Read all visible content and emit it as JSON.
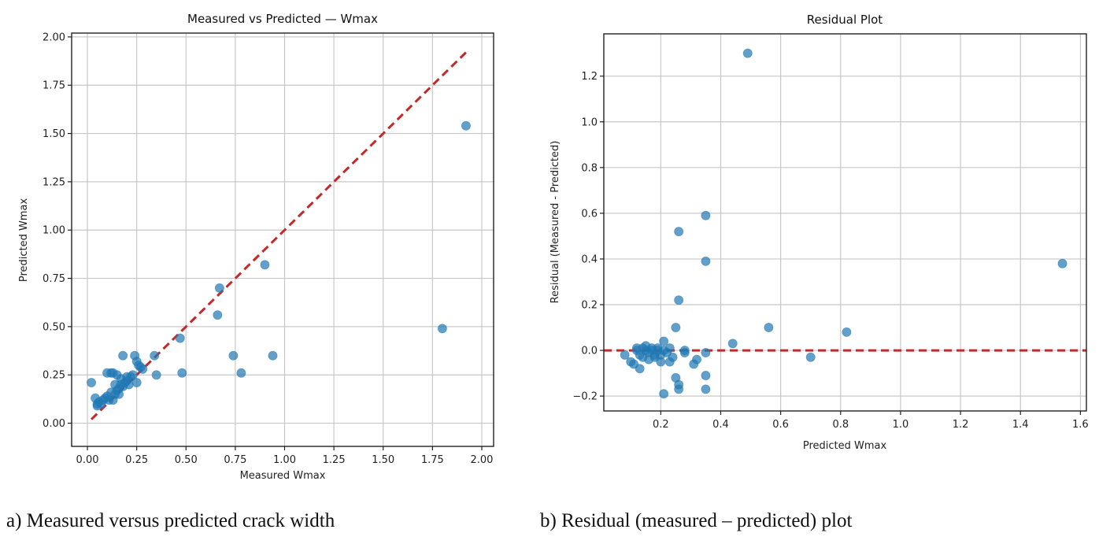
{
  "chart_data": [
    {
      "type": "scatter",
      "title": "Measured vs Predicted — Wmax",
      "xlabel": "Measured Wmax",
      "ylabel": "Predicted Wmax",
      "xlim": [
        -0.08,
        2.06
      ],
      "ylim": [
        -0.12,
        2.02
      ],
      "xticks": [
        0.0,
        0.25,
        0.5,
        0.75,
        1.0,
        1.25,
        1.5,
        1.75,
        2.0
      ],
      "xtick_labels": [
        "0.00",
        "0.25",
        "0.50",
        "0.75",
        "1.00",
        "1.25",
        "1.50",
        "1.75",
        "2.00"
      ],
      "yticks": [
        0.0,
        0.25,
        0.5,
        0.75,
        1.0,
        1.25,
        1.5,
        1.75,
        2.0
      ],
      "ytick_labels": [
        "0.00",
        "0.25",
        "0.50",
        "0.75",
        "1.00",
        "1.25",
        "1.50",
        "1.75",
        "2.00"
      ],
      "grid": true,
      "reference_line": {
        "label": "y = x",
        "from": [
          0.02,
          0.02
        ],
        "to": [
          1.92,
          1.92
        ],
        "style": "dashed",
        "color": "#c62828"
      },
      "marker_color": "#1f77b4",
      "points": [
        [
          0.02,
          0.21
        ],
        [
          0.04,
          0.13
        ],
        [
          0.05,
          0.1
        ],
        [
          0.05,
          0.09
        ],
        [
          0.06,
          0.11
        ],
        [
          0.07,
          0.1
        ],
        [
          0.08,
          0.12
        ],
        [
          0.09,
          0.13
        ],
        [
          0.1,
          0.14
        ],
        [
          0.1,
          0.26
        ],
        [
          0.11,
          0.12
        ],
        [
          0.12,
          0.26
        ],
        [
          0.12,
          0.16
        ],
        [
          0.13,
          0.12
        ],
        [
          0.13,
          0.26
        ],
        [
          0.14,
          0.15
        ],
        [
          0.14,
          0.2
        ],
        [
          0.15,
          0.25
        ],
        [
          0.15,
          0.17
        ],
        [
          0.16,
          0.18
        ],
        [
          0.16,
          0.15
        ],
        [
          0.17,
          0.2
        ],
        [
          0.17,
          0.23
        ],
        [
          0.18,
          0.35
        ],
        [
          0.18,
          0.19
        ],
        [
          0.19,
          0.21
        ],
        [
          0.2,
          0.22
        ],
        [
          0.2,
          0.24
        ],
        [
          0.21,
          0.2
        ],
        [
          0.22,
          0.24
        ],
        [
          0.23,
          0.25
        ],
        [
          0.24,
          0.35
        ],
        [
          0.25,
          0.21
        ],
        [
          0.25,
          0.32
        ],
        [
          0.26,
          0.3
        ],
        [
          0.27,
          0.29
        ],
        [
          0.28,
          0.28
        ],
        [
          0.34,
          0.35
        ],
        [
          0.35,
          0.25
        ],
        [
          0.47,
          0.44
        ],
        [
          0.48,
          0.26
        ],
        [
          0.66,
          0.56
        ],
        [
          0.67,
          0.7
        ],
        [
          0.74,
          0.35
        ],
        [
          0.78,
          0.26
        ],
        [
          0.9,
          0.82
        ],
        [
          0.94,
          0.35
        ],
        [
          1.8,
          0.49
        ],
        [
          1.92,
          1.54
        ]
      ],
      "caption": "a) Measured versus predicted crack width"
    },
    {
      "type": "scatter",
      "title": "Residual Plot",
      "xlabel": "Predicted Wmax",
      "ylabel": "Residual (Measured - Predicted)",
      "xlim": [
        0.01,
        1.62
      ],
      "ylim": [
        -0.265,
        1.385
      ],
      "xticks": [
        0.2,
        0.4,
        0.6,
        0.8,
        1.0,
        1.2,
        1.4,
        1.6
      ],
      "xtick_labels": [
        "0.2",
        "0.4",
        "0.6",
        "0.8",
        "1.0",
        "1.2",
        "1.4",
        "1.6"
      ],
      "yticks": [
        -0.2,
        0.0,
        0.2,
        0.4,
        0.6,
        0.8,
        1.0,
        1.2
      ],
      "ytick_labels": [
        "−0.2",
        "0.0",
        "0.2",
        "0.4",
        "0.6",
        "0.8",
        "1.0",
        "1.2"
      ],
      "grid": true,
      "reference_line": {
        "label": "y = 0",
        "y": 0.0,
        "style": "dashed",
        "color": "#c62828"
      },
      "marker_color": "#1f77b4",
      "points": [
        [
          0.08,
          -0.02
        ],
        [
          0.1,
          -0.05
        ],
        [
          0.11,
          -0.06
        ],
        [
          0.12,
          0.01
        ],
        [
          0.12,
          0.0
        ],
        [
          0.13,
          -0.02
        ],
        [
          0.13,
          -0.08
        ],
        [
          0.14,
          0.01
        ],
        [
          0.14,
          -0.03
        ],
        [
          0.15,
          0.0
        ],
        [
          0.15,
          0.02
        ],
        [
          0.16,
          -0.01
        ],
        [
          0.16,
          -0.04
        ],
        [
          0.17,
          0.0
        ],
        [
          0.17,
          0.01
        ],
        [
          0.18,
          -0.02
        ],
        [
          0.18,
          -0.03
        ],
        [
          0.19,
          0.0
        ],
        [
          0.19,
          0.01
        ],
        [
          0.2,
          -0.02
        ],
        [
          0.2,
          -0.05
        ],
        [
          0.21,
          0.04
        ],
        [
          0.21,
          0.0
        ],
        [
          0.21,
          -0.19
        ],
        [
          0.22,
          -0.01
        ],
        [
          0.23,
          0.01
        ],
        [
          0.23,
          -0.05
        ],
        [
          0.24,
          -0.03
        ],
        [
          0.25,
          0.1
        ],
        [
          0.25,
          -0.12
        ],
        [
          0.26,
          0.52
        ],
        [
          0.26,
          0.22
        ],
        [
          0.26,
          -0.15
        ],
        [
          0.26,
          -0.17
        ],
        [
          0.28,
          0.0
        ],
        [
          0.28,
          -0.01
        ],
        [
          0.31,
          -0.06
        ],
        [
          0.32,
          -0.04
        ],
        [
          0.35,
          0.59
        ],
        [
          0.35,
          0.39
        ],
        [
          0.35,
          -0.01
        ],
        [
          0.35,
          -0.11
        ],
        [
          0.35,
          -0.17
        ],
        [
          0.44,
          0.03
        ],
        [
          0.49,
          1.3
        ],
        [
          0.56,
          0.1
        ],
        [
          0.7,
          -0.03
        ],
        [
          0.82,
          0.08
        ],
        [
          1.54,
          0.38
        ]
      ],
      "caption": "b) Residual (measured – predicted) plot"
    }
  ]
}
